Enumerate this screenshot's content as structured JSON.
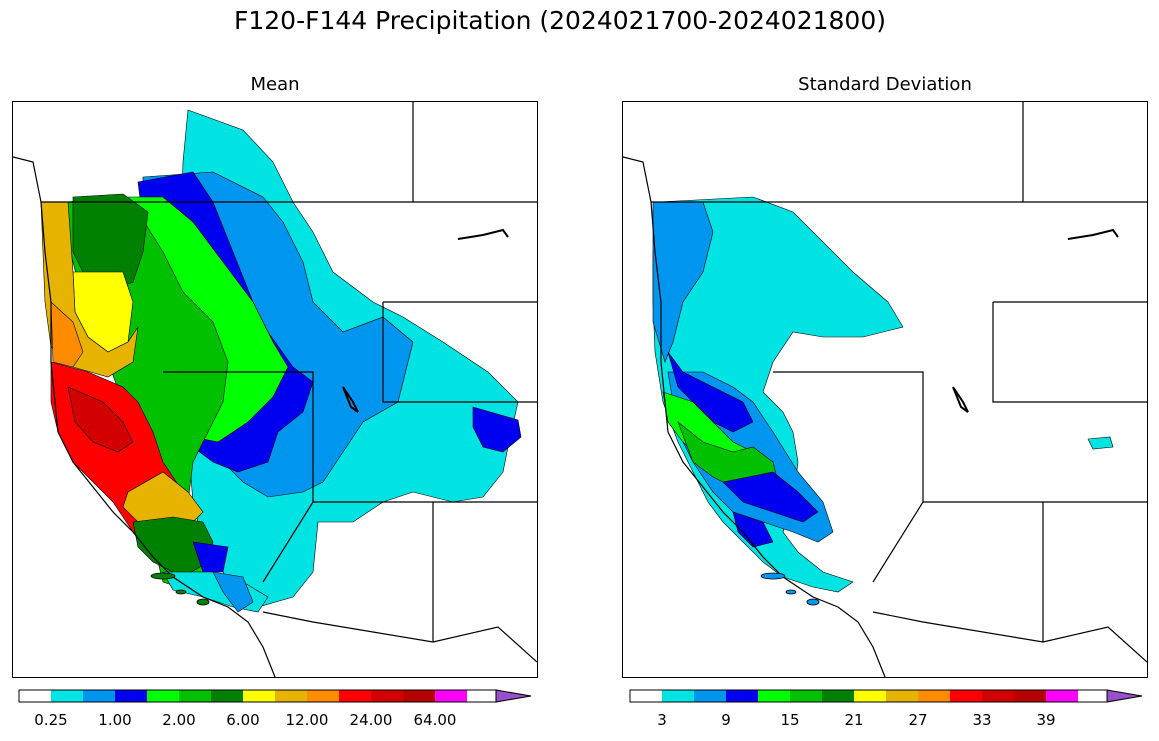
{
  "title": "F120-F144 Precipitation (2024021700-2024021800)",
  "panels": [
    {
      "title": "Mean",
      "colorbar": {
        "colors": [
          "#ffffff",
          "#00e3e3",
          "#0096f0",
          "#0000f0",
          "#00ff00",
          "#00c000",
          "#008000",
          "#ffff00",
          "#e6b400",
          "#ff8c00",
          "#ff0000",
          "#d20000",
          "#b40000",
          "#ff00ff",
          "#9650c8"
        ],
        "tick_labels": [
          "0.25",
          "1.00",
          "2.00",
          "6.00",
          "12.00",
          "24.00",
          "64.00"
        ]
      }
    },
    {
      "title": "Standard Deviation",
      "colorbar": {
        "colors": [
          "#ffffff",
          "#00e3e3",
          "#0096f0",
          "#0000f0",
          "#00ff00",
          "#00c000",
          "#008000",
          "#ffff00",
          "#e6b400",
          "#ff8c00",
          "#ff0000",
          "#d20000",
          "#b40000",
          "#ff00ff",
          "#9650c8"
        ],
        "tick_labels": [
          "3",
          "9",
          "15",
          "21",
          "27",
          "33",
          "39"
        ]
      }
    }
  ]
}
